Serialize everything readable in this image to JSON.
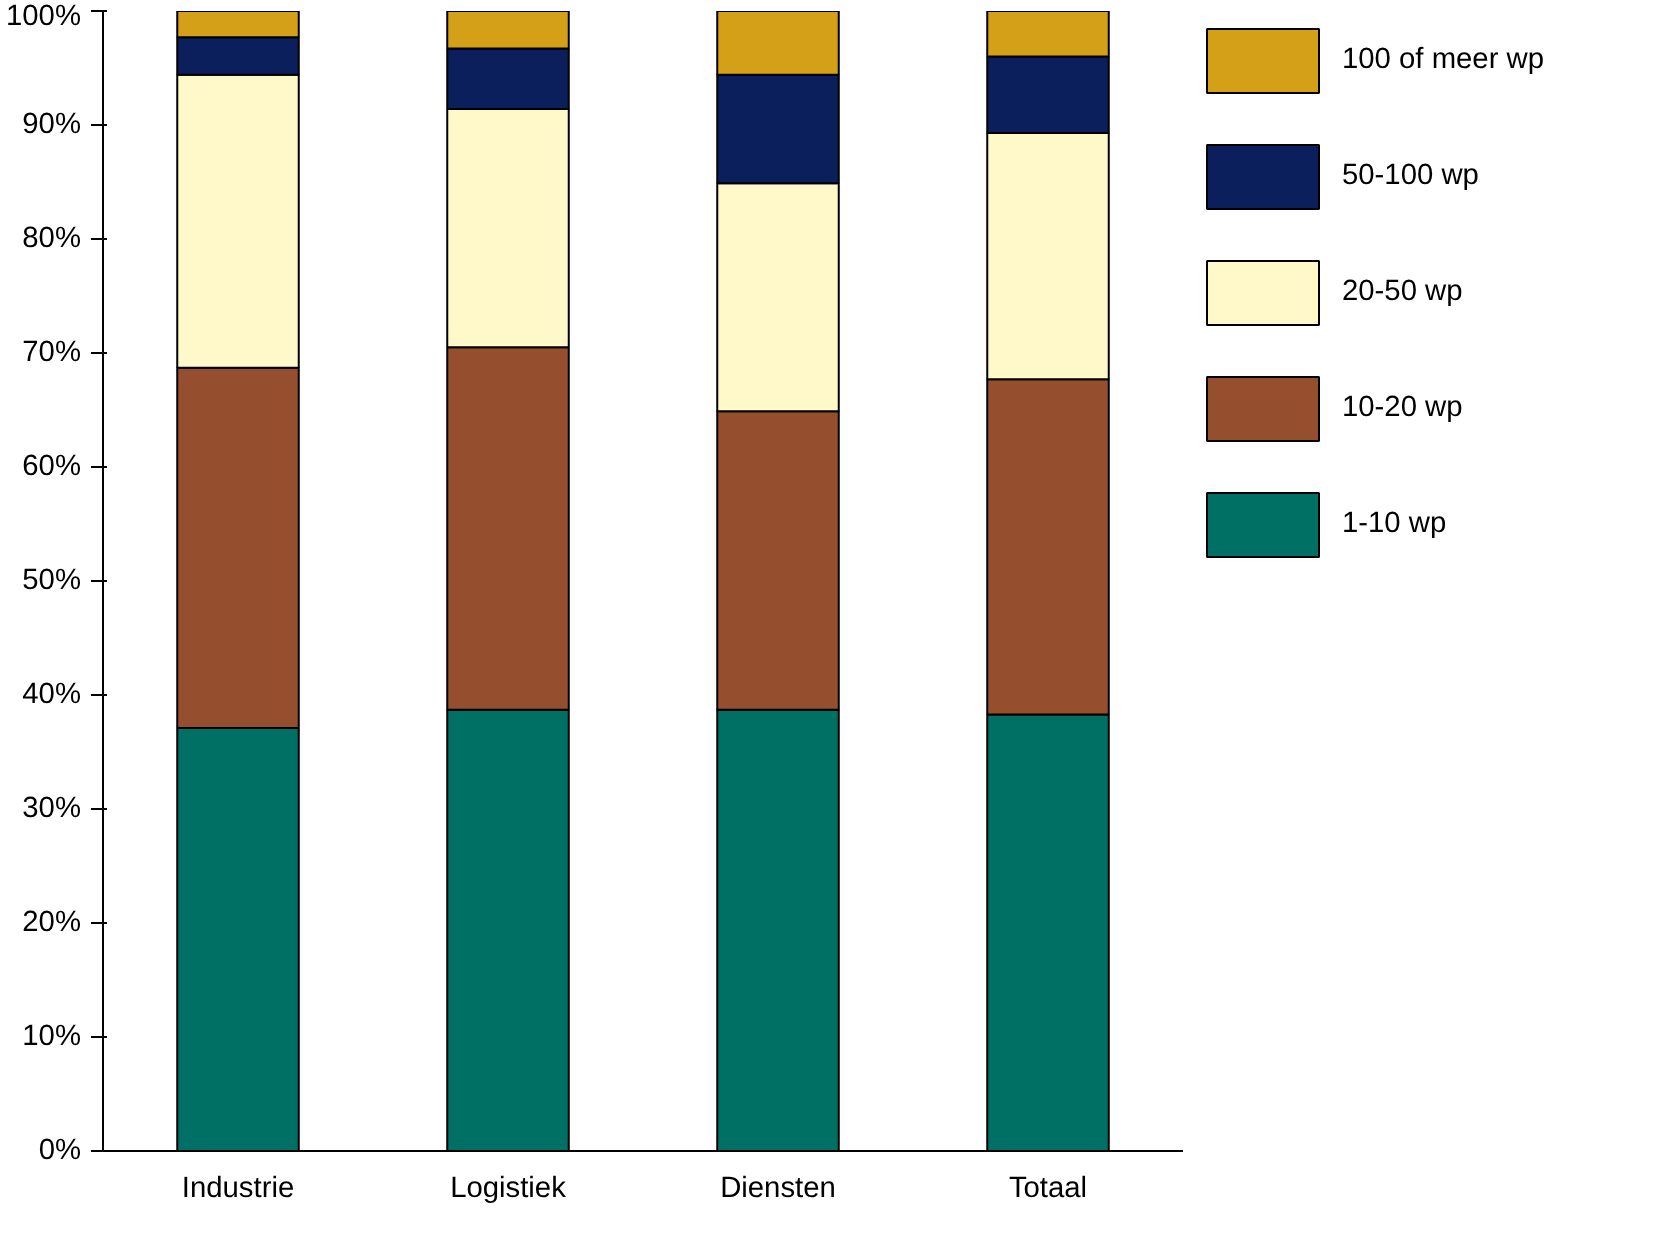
{
  "chart_data": {
    "type": "bar",
    "stacked": true,
    "categories": [
      "Industrie",
      "Logistiek",
      "Diensten",
      "Totaal"
    ],
    "series": [
      {
        "name": "1-10 wp",
        "color": "#007065",
        "values": [
          37.1,
          38.7,
          38.7,
          38.3
        ]
      },
      {
        "name": "10-20 wp",
        "color": "#964f2e",
        "values": [
          31.6,
          31.8,
          26.2,
          29.4
        ]
      },
      {
        "name": "20-50 wp",
        "color": "#fff8c8",
        "values": [
          25.7,
          20.9,
          20.0,
          21.6
        ]
      },
      {
        "name": "50-100 wp",
        "color": "#0a1f5c",
        "values": [
          3.3,
          5.3,
          9.5,
          6.7
        ]
      },
      {
        "name": "100 of meer wp",
        "color": "#d4a017",
        "values": [
          2.3,
          3.3,
          5.6,
          4.0
        ]
      }
    ],
    "ylim": [
      0,
      100
    ],
    "yticks": [
      {
        "value": 0,
        "label": "0%"
      },
      {
        "value": 10,
        "label": "10%"
      },
      {
        "value": 20,
        "label": "20%"
      },
      {
        "value": 30,
        "label": "30%"
      },
      {
        "value": 40,
        "label": "40%"
      },
      {
        "value": 50,
        "label": "50%"
      },
      {
        "value": 60,
        "label": "60%"
      },
      {
        "value": 70,
        "label": "70%"
      },
      {
        "value": 80,
        "label": "80%"
      },
      {
        "value": 90,
        "label": "90%"
      },
      {
        "value": 100,
        "label": "100%"
      }
    ],
    "grid": false,
    "legend": "right"
  }
}
